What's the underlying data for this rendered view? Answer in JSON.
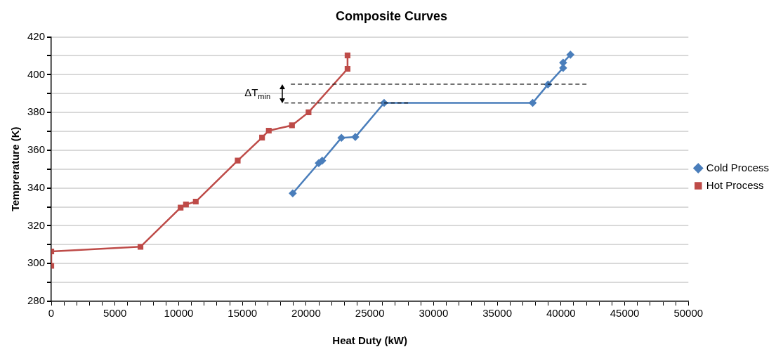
{
  "chart_data": {
    "type": "line",
    "title": "Composite Curves",
    "xlabel": "Heat Duty (kW)",
    "ylabel": "Temprerature (K)",
    "xlim": [
      0,
      50000
    ],
    "xticks": [
      0,
      {
        "value": 1000,
        "label": null
      },
      {
        "value": 2000,
        "label": null
      },
      {
        "value": 3000,
        "label": null
      },
      {
        "value": 4000,
        "label": null
      },
      5000,
      {
        "value": 6000,
        "label": null
      },
      {
        "value": 7000,
        "label": null
      },
      {
        "value": 8000,
        "label": null
      },
      {
        "value": 9000,
        "label": null
      },
      10000,
      {
        "value": 11000,
        "label": null
      },
      {
        "value": 12000,
        "label": null
      },
      {
        "value": 13000,
        "label": null
      },
      {
        "value": 14000,
        "label": null
      },
      15000,
      {
        "value": 16000,
        "label": null
      },
      {
        "value": 17000,
        "label": null
      },
      {
        "value": 18000,
        "label": null
      },
      {
        "value": 19000,
        "label": null
      },
      20000,
      {
        "value": 21000,
        "label": null
      },
      {
        "value": 22000,
        "label": null
      },
      {
        "value": 23000,
        "label": null
      },
      {
        "value": 24000,
        "label": null
      },
      25000,
      {
        "value": 26000,
        "label": null
      },
      {
        "value": 27000,
        "label": null
      },
      {
        "value": 28000,
        "label": null
      },
      {
        "value": 29000,
        "label": null
      },
      30000,
      {
        "value": 31000,
        "label": null
      },
      {
        "value": 32000,
        "label": null
      },
      {
        "value": 33000,
        "label": null
      },
      {
        "value": 34000,
        "label": null
      },
      35000,
      {
        "value": 36000,
        "label": null
      },
      {
        "value": 37000,
        "label": null
      },
      {
        "value": 38000,
        "label": null
      },
      {
        "value": 39000,
        "label": null
      },
      40000,
      {
        "value": 41000,
        "label": null
      },
      {
        "value": 42000,
        "label": null
      },
      {
        "value": 43000,
        "label": null
      },
      {
        "value": 44000,
        "label": null
      },
      45000,
      {
        "value": 46000,
        "label": null
      },
      {
        "value": 47000,
        "label": null
      },
      {
        "value": 48000,
        "label": null
      },
      {
        "value": 49000,
        "label": null
      },
      50000
    ],
    "ylim": [
      280,
      420
    ],
    "yticks": [
      280,
      {
        "value": 290,
        "label": null
      },
      300,
      {
        "value": 310,
        "label": null
      },
      320,
      {
        "value": 330,
        "label": null
      },
      340,
      {
        "value": 350,
        "label": null
      },
      360,
      {
        "value": 370,
        "label": null
      },
      380,
      {
        "value": 390,
        "label": null
      },
      400,
      {
        "value": 410,
        "label": null
      },
      420
    ],
    "grid": "y",
    "legend": "right",
    "series": [
      {
        "name": "Cold Process",
        "color": "#4a7ebb",
        "marker": "diamond",
        "x": [
          18950,
          20990,
          21260,
          22770,
          23860,
          26120,
          37780,
          38980,
          40170,
          40170,
          40740
        ],
        "values": [
          337.2,
          353.2,
          354.5,
          366.6,
          367.0,
          385.1,
          385.1,
          394.8,
          403.6,
          406.4,
          410.6
        ]
      },
      {
        "name": "Hot Process",
        "color": "#be4b48",
        "marker": "square",
        "x": [
          0,
          0,
          7000,
          10150,
          10570,
          11340,
          14630,
          16540,
          17070,
          18890,
          20190,
          23250,
          23250
        ],
        "values": [
          298.8,
          306.4,
          308.9,
          329.6,
          331.3,
          332.8,
          354.5,
          366.7,
          370.4,
          373.2,
          380.1,
          403.1,
          410.2
        ]
      },
      {
        "color": "#000000",
        "marker": "none",
        "line_style": "dashed",
        "x": [
          18800,
          42000
        ],
        "values": [
          395,
          395
        ]
      },
      {
        "color": "#000000",
        "marker": "none",
        "line_style": "dashed",
        "x": [
          18300,
          28000
        ],
        "values": [
          385,
          385
        ]
      }
    ],
    "annotations": [
      "ΔT$_{min}$"
    ]
  }
}
